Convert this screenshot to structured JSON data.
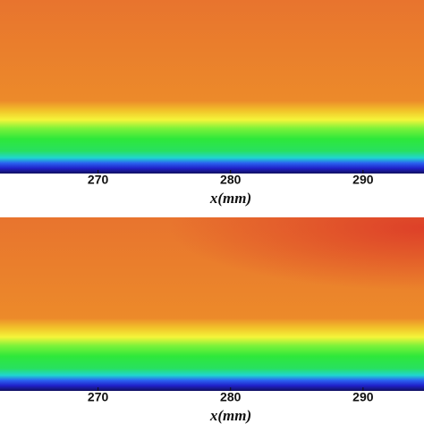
{
  "chart_data": [
    {
      "type": "heatmap",
      "xlim": [
        262.6,
        294.6
      ],
      "xticks": [
        270,
        280,
        290
      ],
      "xlabel": "x(mm)"
    },
    {
      "type": "heatmap",
      "xlim": [
        262.6,
        294.6
      ],
      "xticks": [
        270,
        280,
        290
      ],
      "xlabel": "x(mm)"
    }
  ]
}
